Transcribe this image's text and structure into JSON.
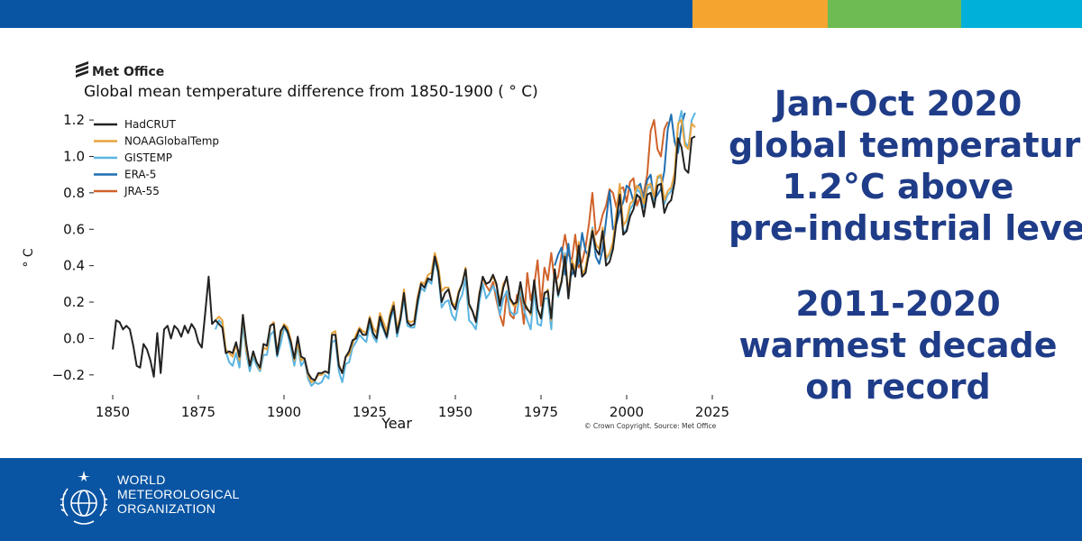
{
  "colors": {
    "top_blue": "#0a55a3",
    "top_orange": "#f3a530",
    "top_green": "#6dbb52",
    "top_cyan": "#00b0d8",
    "footer": "#0a55a3",
    "headline": "#1f3c88"
  },
  "brand": {
    "met_office": "Met Office",
    "wmo_lines": [
      "WORLD",
      "METEOROLOGICAL",
      "ORGANIZATION"
    ],
    "wmo_logo_icon": "wmo-emblem-icon"
  },
  "headline": {
    "block1": [
      "Jan-Oct 2020",
      "global temperature:",
      "1.2°C above",
      "pre-industrial level"
    ],
    "block2": [
      "2011-2020",
      "warmest decade",
      "on record"
    ]
  },
  "chart_data": {
    "type": "line",
    "title": "Global mean temperature difference from 1850-1900 ( ° C)",
    "xlabel": "Year",
    "ylabel": "° C",
    "xlim": [
      1845,
      2025
    ],
    "ylim": [
      -0.3,
      1.25
    ],
    "xticks": [
      1850,
      1875,
      1900,
      1925,
      1950,
      1975,
      2000,
      2025
    ],
    "yticks": [
      -0.2,
      0.0,
      0.2,
      0.4,
      0.6,
      0.8,
      1.0,
      1.2
    ],
    "ytick_labels": [
      "−0.2",
      "0.0",
      "0.2",
      "0.4",
      "0.6",
      "0.8",
      "1.0",
      "1.2"
    ],
    "legend_position": "top-left",
    "source": "© Crown Copyright. Source: Met Office",
    "series": [
      {
        "name": "HadCRUT",
        "color": "#222222",
        "start": 1850,
        "values": [
          -0.06,
          0.1,
          0.09,
          0.05,
          0.07,
          0.05,
          -0.04,
          -0.15,
          -0.16,
          -0.03,
          -0.06,
          -0.12,
          -0.21,
          0.03,
          -0.19,
          0.05,
          0.07,
          0.0,
          0.07,
          0.05,
          0.01,
          0.07,
          0.03,
          0.08,
          0.05,
          -0.02,
          -0.05,
          0.14,
          0.34,
          0.08,
          0.1,
          0.08,
          0.06,
          -0.08,
          -0.07,
          -0.08,
          -0.02,
          -0.1,
          0.13,
          -0.03,
          -0.15,
          -0.07,
          -0.13,
          -0.16,
          -0.03,
          -0.04,
          0.07,
          0.08,
          -0.09,
          0.04,
          0.07,
          0.04,
          -0.02,
          -0.11,
          0.01,
          -0.1,
          -0.11,
          -0.19,
          -0.22,
          -0.23,
          -0.19,
          -0.19,
          -0.18,
          -0.19,
          0.02,
          0.02,
          -0.15,
          -0.19,
          -0.1,
          -0.07,
          -0.01,
          0.0,
          0.05,
          0.02,
          0.02,
          0.11,
          0.03,
          0.0,
          0.12,
          0.06,
          0.01,
          0.12,
          0.18,
          0.03,
          0.11,
          0.25,
          0.09,
          0.07,
          0.08,
          0.21,
          0.3,
          0.28,
          0.33,
          0.32,
          0.45,
          0.37,
          0.2,
          0.25,
          0.27,
          0.19,
          0.16,
          0.25,
          0.3,
          0.38,
          0.19,
          0.15,
          0.09,
          0.24,
          0.34,
          0.3,
          0.31,
          0.35,
          0.3,
          0.18,
          0.28,
          0.34,
          0.22,
          0.19,
          0.2,
          0.31,
          0.2,
          0.16,
          0.14,
          0.32,
          0.16,
          0.11,
          0.25,
          0.26,
          0.11,
          0.38,
          0.24,
          0.31,
          0.45,
          0.22,
          0.41,
          0.34,
          0.51,
          0.34,
          0.36,
          0.47,
          0.59,
          0.49,
          0.46,
          0.59,
          0.4,
          0.42,
          0.49,
          0.64,
          0.79,
          0.57,
          0.59,
          0.67,
          0.71,
          0.79,
          0.77,
          0.67,
          0.79,
          0.8,
          0.72,
          0.84,
          0.85,
          0.69,
          0.74,
          0.76,
          0.86,
          1.1,
          1.05,
          0.93,
          0.91,
          1.1,
          1.11
        ]
      },
      {
        "name": "NOAAGlobalTemp",
        "color": "#e8a33c",
        "start": 1880,
        "values": [
          0.1,
          0.12,
          0.1,
          -0.06,
          -0.08,
          -0.1,
          -0.03,
          -0.12,
          0.13,
          -0.06,
          -0.15,
          -0.08,
          -0.13,
          -0.17,
          -0.05,
          -0.06,
          0.07,
          0.09,
          -0.07,
          0.02,
          0.08,
          0.06,
          -0.01,
          -0.12,
          -0.02,
          -0.12,
          -0.11,
          -0.2,
          -0.24,
          -0.23,
          -0.2,
          -0.2,
          -0.18,
          -0.19,
          0.03,
          0.04,
          -0.14,
          -0.19,
          -0.1,
          -0.09,
          -0.03,
          0.02,
          0.06,
          0.04,
          0.03,
          0.12,
          0.06,
          0.03,
          0.14,
          0.09,
          0.04,
          0.14,
          0.2,
          0.05,
          0.13,
          0.27,
          0.1,
          0.09,
          0.1,
          0.23,
          0.31,
          0.3,
          0.35,
          0.36,
          0.47,
          0.4,
          0.26,
          0.28,
          0.28,
          0.2,
          0.18,
          0.26,
          0.3,
          0.39,
          0.18,
          0.15,
          0.1,
          0.25,
          0.33,
          0.3,
          0.31,
          0.34,
          0.29,
          0.2,
          0.3,
          0.33,
          0.21,
          0.18,
          0.19,
          0.3,
          0.19,
          0.17,
          0.13,
          0.31,
          0.16,
          0.12,
          0.24,
          0.27,
          0.1,
          0.38,
          0.25,
          0.32,
          0.46,
          0.24,
          0.43,
          0.38,
          0.53,
          0.35,
          0.39,
          0.5,
          0.6,
          0.52,
          0.49,
          0.61,
          0.44,
          0.47,
          0.53,
          0.69,
          0.85,
          0.62,
          0.65,
          0.74,
          0.76,
          0.84,
          0.82,
          0.74,
          0.84,
          0.85,
          0.78,
          0.89,
          0.9,
          0.76,
          0.81,
          0.83,
          0.91,
          1.18,
          1.2,
          1.06,
          1.04,
          1.18,
          1.16
        ]
      },
      {
        "name": "GISTEMP",
        "color": "#5ab4e0",
        "start": 1880,
        "values": [
          0.05,
          0.1,
          0.08,
          -0.07,
          -0.13,
          -0.15,
          -0.08,
          -0.16,
          0.08,
          -0.08,
          -0.18,
          -0.1,
          -0.15,
          -0.18,
          -0.09,
          -0.09,
          0.02,
          0.04,
          -0.1,
          -0.03,
          0.06,
          0.03,
          -0.05,
          -0.15,
          -0.04,
          -0.15,
          -0.12,
          -0.22,
          -0.26,
          -0.24,
          -0.25,
          -0.24,
          -0.2,
          -0.22,
          -0.02,
          -0.01,
          -0.18,
          -0.24,
          -0.14,
          -0.13,
          -0.05,
          -0.02,
          0.02,
          0.0,
          -0.02,
          0.08,
          0.01,
          -0.02,
          0.09,
          0.05,
          0.0,
          0.1,
          0.16,
          0.01,
          0.1,
          0.22,
          0.07,
          0.06,
          0.06,
          0.18,
          0.28,
          0.26,
          0.32,
          0.3,
          0.43,
          0.36,
          0.17,
          0.2,
          0.21,
          0.13,
          0.1,
          0.2,
          0.24,
          0.33,
          0.1,
          0.08,
          0.05,
          0.2,
          0.3,
          0.22,
          0.25,
          0.29,
          0.25,
          0.13,
          0.22,
          0.26,
          0.15,
          0.13,
          0.14,
          0.27,
          0.16,
          0.1,
          0.05,
          0.27,
          0.08,
          0.07,
          0.22,
          0.22,
          0.05,
          0.38,
          0.23,
          0.31,
          0.47,
          0.22,
          0.41,
          0.35,
          0.5,
          0.34,
          0.37,
          0.5,
          0.61,
          0.48,
          0.47,
          0.6,
          0.43,
          0.46,
          0.52,
          0.65,
          0.82,
          0.58,
          0.6,
          0.71,
          0.74,
          0.82,
          0.8,
          0.72,
          0.82,
          0.84,
          0.76,
          0.88,
          0.89,
          0.74,
          0.79,
          0.81,
          0.9,
          1.17,
          1.25,
          1.08,
          1.05,
          1.2,
          1.24
        ]
      },
      {
        "name": "ERA-5",
        "color": "#1f6fb2",
        "start": 1979,
        "values": [
          0.4,
          0.46,
          0.5,
          0.35,
          0.52,
          0.35,
          0.38,
          0.42,
          0.58,
          0.48,
          0.45,
          0.6,
          0.45,
          0.41,
          0.49,
          0.65,
          0.81,
          0.6,
          0.63,
          0.7,
          0.75,
          0.84,
          0.82,
          0.75,
          0.83,
          0.85,
          0.76,
          0.87,
          0.9,
          0.76,
          0.79,
          0.82,
          0.92,
          1.15,
          1.23,
          1.08,
          1.02,
          1.17,
          1.24
        ]
      },
      {
        "name": "JRA-55",
        "color": "#d0622a",
        "start": 1958,
        "values": [
          0.33,
          0.29,
          0.26,
          0.31,
          0.21,
          0.13,
          0.07,
          0.25,
          0.13,
          0.11,
          0.24,
          0.23,
          0.08,
          0.36,
          0.21,
          0.29,
          0.43,
          0.18,
          0.39,
          0.32,
          0.47,
          0.31,
          0.34,
          0.46,
          0.57,
          0.46,
          0.43,
          0.57,
          0.39,
          0.42,
          0.5,
          0.63,
          0.8,
          0.57,
          0.6,
          0.68,
          0.73,
          0.82,
          0.8,
          0.72,
          0.82,
          0.83,
          0.75,
          0.86,
          0.88,
          0.73,
          0.78,
          0.8,
          0.9,
          1.14,
          1.2,
          1.04,
          1.0,
          1.15,
          1.19
        ]
      }
    ]
  }
}
